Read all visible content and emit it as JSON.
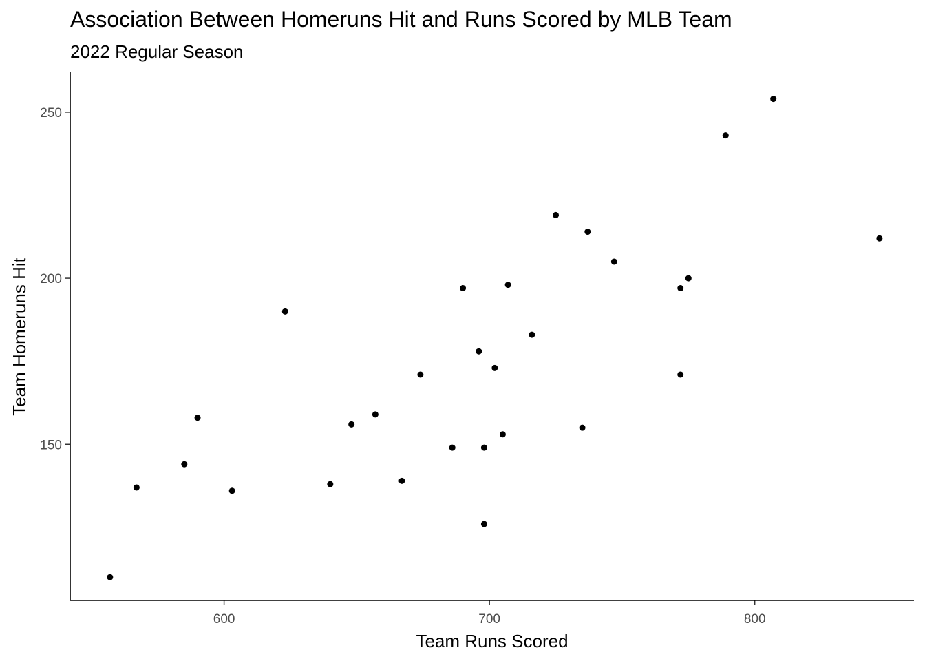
{
  "chart_data": {
    "type": "scatter",
    "title": "Association Between Homeruns Hit and Runs Scored by MLB Team",
    "subtitle": "2022 Regular Season",
    "xlabel": "Team Runs Scored",
    "ylabel": "Team Homeruns Hit",
    "xlim": [
      542,
      860
    ],
    "ylim": [
      103,
      262
    ],
    "x_ticks": [
      600,
      700,
      800
    ],
    "y_ticks": [
      150,
      200,
      250
    ],
    "grid": false,
    "point_color": "#000000",
    "points": [
      {
        "x": 557,
        "y": 110
      },
      {
        "x": 567,
        "y": 137
      },
      {
        "x": 585,
        "y": 144
      },
      {
        "x": 590,
        "y": 158
      },
      {
        "x": 603,
        "y": 136
      },
      {
        "x": 623,
        "y": 190
      },
      {
        "x": 640,
        "y": 138
      },
      {
        "x": 648,
        "y": 156
      },
      {
        "x": 657,
        "y": 159
      },
      {
        "x": 667,
        "y": 139
      },
      {
        "x": 674,
        "y": 171
      },
      {
        "x": 686,
        "y": 149
      },
      {
        "x": 690,
        "y": 197
      },
      {
        "x": 696,
        "y": 178
      },
      {
        "x": 698,
        "y": 149
      },
      {
        "x": 698,
        "y": 126
      },
      {
        "x": 702,
        "y": 173
      },
      {
        "x": 705,
        "y": 153
      },
      {
        "x": 707,
        "y": 198
      },
      {
        "x": 716,
        "y": 183
      },
      {
        "x": 725,
        "y": 219
      },
      {
        "x": 735,
        "y": 155
      },
      {
        "x": 737,
        "y": 214
      },
      {
        "x": 747,
        "y": 205
      },
      {
        "x": 772,
        "y": 197
      },
      {
        "x": 772,
        "y": 171
      },
      {
        "x": 775,
        "y": 200
      },
      {
        "x": 789,
        "y": 243
      },
      {
        "x": 807,
        "y": 254
      },
      {
        "x": 847,
        "y": 212
      }
    ]
  }
}
